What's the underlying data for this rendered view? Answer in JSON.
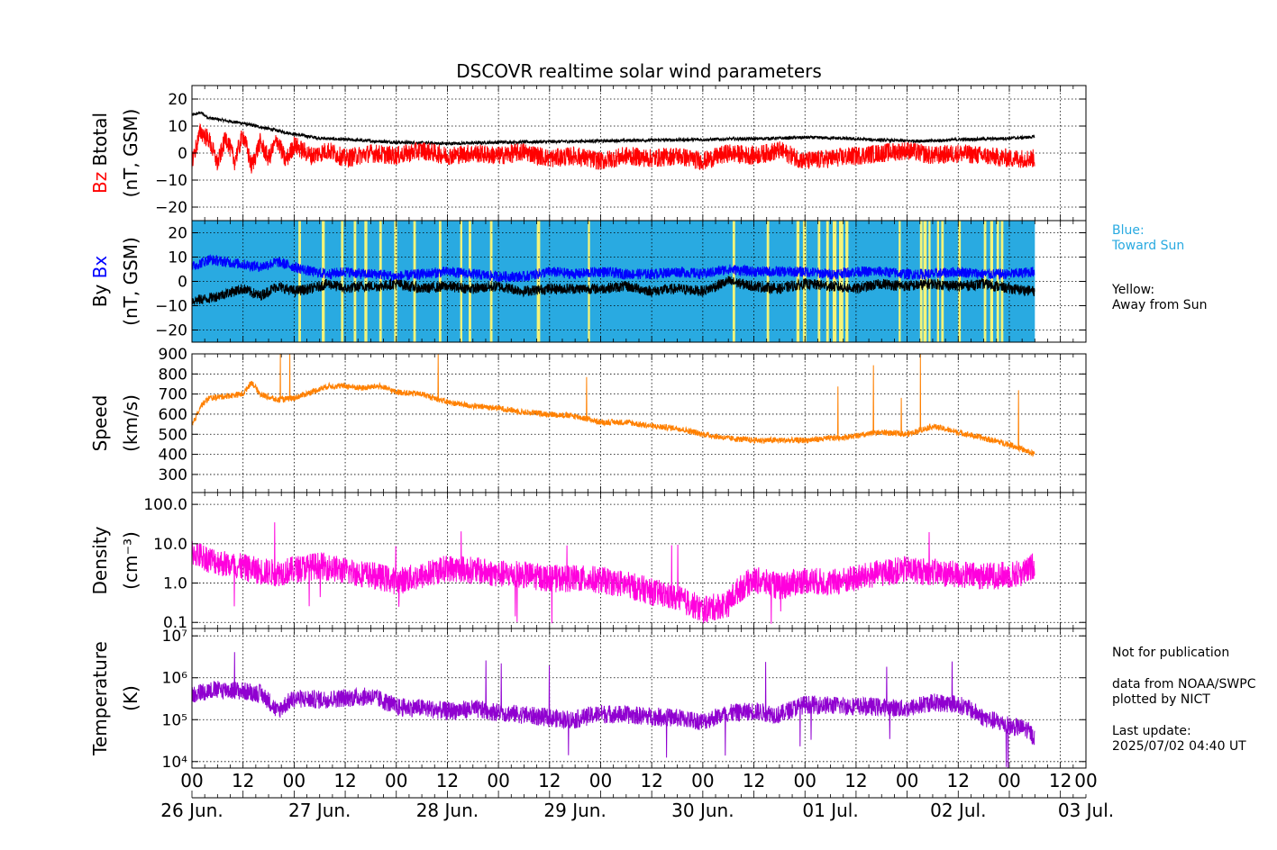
{
  "title": "DSCOVR realtime solar wind parameters",
  "colors": {
    "bz": "#ff0000",
    "btotal": "#000000",
    "bx": "#0000ff",
    "by": "#000000",
    "speed": "#ff8000",
    "density": "#ff00dd",
    "temperature": "#9000d0",
    "toward": "#29aae1",
    "away": "#f4f47a",
    "legend_blue_text": "#29aae1"
  },
  "chart_data": [
    {
      "type": "line",
      "panel": "magnetic-field-z",
      "ylabel_parts": [
        "Bz",
        "Btotal"
      ],
      "yunits": "(nT, GSM)",
      "ylim": [
        -25,
        25
      ],
      "yticks": [
        20,
        10,
        0,
        -10,
        -20
      ],
      "ytick_labels": [
        "20",
        "10",
        "0",
        "−10",
        "−20"
      ],
      "grid": true,
      "series": [
        {
          "name": "Btotal",
          "color": "#000000",
          "x": [
            0,
            2,
            4,
            8,
            12,
            18,
            24,
            30,
            36,
            42,
            48,
            60,
            72,
            84,
            96,
            108,
            120,
            126,
            132,
            138,
            144,
            150,
            156,
            162,
            168,
            174,
            180,
            186,
            192,
            198
          ],
          "values": [
            14,
            15,
            13,
            12,
            11,
            9,
            7,
            5.5,
            5,
            4.5,
            4,
            3.5,
            4,
            4.2,
            4.5,
            4.8,
            5,
            5.2,
            5.3,
            5.5,
            5.8,
            5.6,
            5.2,
            4.8,
            4.5,
            4.5,
            5,
            5.2,
            5.5,
            6
          ]
        },
        {
          "name": "Bz",
          "color": "#ff0000",
          "x": [
            0,
            2,
            4,
            6,
            8,
            10,
            12,
            14,
            16,
            18,
            20,
            22,
            24,
            28,
            32,
            36,
            42,
            48,
            54,
            60,
            66,
            72,
            78,
            84,
            90,
            96,
            102,
            108,
            114,
            120,
            126,
            132,
            138,
            144,
            150,
            156,
            162,
            168,
            174,
            180,
            186,
            192,
            198
          ],
          "values": [
            -3,
            8,
            5,
            -4,
            6,
            -3,
            7,
            -5,
            4,
            -2,
            5,
            -3,
            3,
            -1,
            1,
            -2,
            0,
            -1,
            1,
            -1,
            0,
            -1,
            0.5,
            -2,
            -1,
            -3,
            -1,
            -2,
            -1,
            -3,
            0,
            -1,
            1,
            -3,
            -2,
            -1,
            0,
            1,
            -1,
            0,
            -1,
            -2,
            -2
          ]
        }
      ]
    },
    {
      "type": "line",
      "panel": "magnetic-field-xy",
      "ylabel_parts": [
        "By",
        "Bx"
      ],
      "yunits": "(nT, GSM)",
      "ylim": [
        -25,
        25
      ],
      "yticks": [
        20,
        10,
        0,
        -10,
        -20
      ],
      "ytick_labels": [
        "20",
        "10",
        "0",
        "−10",
        "−20"
      ],
      "grid": true,
      "sector_until": 198,
      "away_intervals": [
        [
          25,
          25.6
        ],
        [
          30.5,
          31.2
        ],
        [
          35,
          35.6
        ],
        [
          38,
          38.6
        ],
        [
          40.5,
          41.2
        ],
        [
          44,
          44.6
        ],
        [
          47.5,
          48.2
        ],
        [
          52,
          52.6
        ],
        [
          58,
          58.6
        ],
        [
          63,
          63.5
        ],
        [
          65,
          65.6
        ],
        [
          70,
          70.6
        ],
        [
          81,
          81.8
        ],
        [
          93,
          93.5
        ],
        [
          127,
          127.6
        ],
        [
          135,
          135.6
        ],
        [
          142,
          142.7
        ],
        [
          143.5,
          144.3
        ],
        [
          147,
          147.6
        ],
        [
          149,
          149.6
        ],
        [
          150.5,
          151.4
        ],
        [
          152,
          153
        ],
        [
          153.5,
          154.2
        ],
        [
          166,
          166.5
        ],
        [
          171,
          171.6
        ],
        [
          171.8,
          172.6
        ],
        [
          173,
          173.5
        ],
        [
          175,
          175.5
        ],
        [
          176,
          176.6
        ],
        [
          180,
          180.6
        ],
        [
          186,
          186.6
        ],
        [
          187.5,
          188.2
        ],
        [
          189,
          189.6
        ],
        [
          190,
          190.6
        ]
      ],
      "series": [
        {
          "name": "Bx",
          "color": "#0000ff",
          "x": [
            0,
            4,
            8,
            12,
            16,
            20,
            24,
            28,
            32,
            36,
            40,
            44,
            48,
            54,
            60,
            66,
            72,
            78,
            84,
            90,
            96,
            102,
            108,
            114,
            120,
            126,
            132,
            138,
            144,
            150,
            156,
            162,
            168,
            174,
            180,
            186,
            192,
            198
          ],
          "values": [
            6,
            9,
            8,
            7,
            6,
            8,
            6,
            4,
            3,
            4,
            3,
            3,
            2,
            3,
            4,
            3,
            2,
            2,
            4,
            3,
            4,
            3,
            3,
            4,
            3,
            5,
            4,
            4,
            4,
            3,
            4,
            4,
            3,
            3,
            4,
            3,
            3,
            4
          ]
        },
        {
          "name": "By",
          "color": "#000000",
          "x": [
            0,
            4,
            8,
            12,
            16,
            20,
            24,
            28,
            32,
            36,
            40,
            44,
            48,
            54,
            60,
            66,
            72,
            78,
            84,
            90,
            96,
            102,
            108,
            114,
            120,
            126,
            132,
            138,
            144,
            150,
            156,
            162,
            168,
            174,
            180,
            186,
            192,
            198
          ],
          "values": [
            -8,
            -7,
            -5,
            -3,
            -6,
            -2,
            -4,
            -3,
            -1,
            -3,
            -2,
            -2,
            -1,
            -3,
            -2,
            -3,
            -2,
            -4,
            -3,
            -3,
            -3,
            -2,
            -4,
            -3,
            -4,
            0,
            -2,
            -3,
            -1,
            -2,
            -3,
            -1,
            -2,
            -1,
            -2,
            -1,
            -3,
            -4
          ]
        }
      ]
    },
    {
      "type": "line",
      "panel": "speed",
      "ylabel_parts": [
        "Speed"
      ],
      "yunits": "(km/s)",
      "ylim": [
        210,
        900
      ],
      "yticks": [
        900,
        800,
        700,
        600,
        500,
        400,
        300
      ],
      "ytick_labels": [
        "900",
        "800",
        "700",
        "600",
        "500",
        "400",
        "300"
      ],
      "grid": true,
      "series": [
        {
          "name": "Speed",
          "color": "#ff8000",
          "x": [
            0,
            2,
            4,
            8,
            12,
            14,
            16,
            20,
            24,
            28,
            32,
            36,
            40,
            44,
            48,
            54,
            60,
            66,
            72,
            78,
            84,
            90,
            96,
            102,
            108,
            114,
            120,
            126,
            132,
            136,
            138,
            144,
            150,
            156,
            162,
            168,
            174,
            180,
            186,
            192,
            198
          ],
          "values": [
            540,
            640,
            680,
            690,
            700,
            760,
            700,
            670,
            680,
            710,
            740,
            740,
            730,
            740,
            710,
            700,
            660,
            640,
            630,
            610,
            600,
            590,
            560,
            560,
            540,
            530,
            500,
            480,
            470,
            470,
            470,
            470,
            480,
            490,
            510,
            500,
            540,
            510,
            480,
            450,
            400
          ]
        }
      ]
    },
    {
      "type": "line",
      "panel": "density",
      "ylabel_parts": [
        "Density"
      ],
      "yunits": "(cm⁻³)",
      "yscale": "log",
      "ylim": [
        0.07,
        200
      ],
      "yticks": [
        100,
        10,
        1,
        0.1
      ],
      "ytick_labels": [
        "100.0",
        "10.0",
        "1.0",
        "0.1"
      ],
      "grid": true,
      "series": [
        {
          "name": "Density",
          "color": "#ff00dd",
          "x": [
            0,
            4,
            8,
            12,
            16,
            20,
            24,
            30,
            36,
            42,
            48,
            54,
            60,
            66,
            72,
            78,
            84,
            90,
            96,
            102,
            108,
            114,
            120,
            126,
            132,
            138,
            144,
            150,
            156,
            162,
            168,
            174,
            180,
            186,
            192,
            196,
            198
          ],
          "values": [
            6,
            4,
            3,
            2.5,
            2,
            1.8,
            2.2,
            2.8,
            2,
            1.6,
            1.1,
            1.5,
            2.4,
            2.1,
            1.7,
            1.6,
            1.3,
            1.3,
            1.2,
            0.9,
            0.6,
            0.4,
            0.2,
            0.3,
            1.2,
            0.8,
            1.2,
            1.0,
            1.3,
            1.8,
            2.2,
            1.9,
            1.6,
            1.5,
            1.6,
            1.9,
            3
          ]
        }
      ]
    },
    {
      "type": "line",
      "panel": "temperature",
      "ylabel_parts": [
        "Temperature"
      ],
      "yunits": "(K)",
      "yscale": "log",
      "ylim": [
        7000,
        15000000
      ],
      "yticks": [
        10000000,
        1000000,
        100000,
        10000
      ],
      "ytick_labels": [
        "10⁷",
        "10⁶",
        "10⁵",
        "10⁴"
      ],
      "grid": true,
      "series": [
        {
          "name": "Temperature",
          "color": "#9000d0",
          "x": [
            0,
            4,
            8,
            12,
            16,
            20,
            24,
            30,
            36,
            42,
            48,
            54,
            60,
            66,
            72,
            78,
            84,
            90,
            96,
            102,
            108,
            114,
            120,
            126,
            132,
            138,
            144,
            150,
            156,
            162,
            168,
            174,
            180,
            186,
            192,
            196,
            198
          ],
          "values": [
            400000,
            500000,
            520000,
            480000,
            420000,
            150000,
            320000,
            300000,
            330000,
            360000,
            200000,
            190000,
            160000,
            180000,
            150000,
            130000,
            110000,
            100000,
            140000,
            130000,
            120000,
            110000,
            90000,
            140000,
            160000,
            130000,
            230000,
            220000,
            210000,
            200000,
            180000,
            260000,
            230000,
            110000,
            70000,
            60000,
            35000
          ]
        }
      ]
    }
  ],
  "x_axis": {
    "range_hours": [
      0,
      210
    ],
    "tick_hours": [
      0,
      12,
      24,
      36,
      48,
      60,
      72,
      84,
      96,
      108,
      120,
      132,
      144,
      156,
      168,
      180,
      192,
      204
    ],
    "hour_labels": [
      "00",
      "12",
      "00",
      "12",
      "00",
      "12",
      "00",
      "12",
      "00",
      "12",
      "00",
      "12",
      "00",
      "12",
      "00",
      "12",
      "00",
      "12"
    ],
    "date_ticks": [
      0,
      24,
      48,
      72,
      96,
      120,
      144,
      168
    ],
    "date_labels": [
      "26 Jun.",
      "27 Jun.",
      "28 Jun.",
      "29 Jun.",
      "30 Jun.",
      "01 Jul.",
      "02 Jul.",
      "03 Jul."
    ]
  },
  "legend": {
    "blue_label": "Blue:",
    "blue_text": "Toward Sun",
    "yellow_label": "Yellow:",
    "yellow_text": "Away from Sun"
  },
  "notes": {
    "publication": "Not for publication",
    "source": "data from NOAA/SWPC",
    "plotted": "plotted by NICT",
    "update_label": "Last update:",
    "update_time": "2025/07/02 04:40 UT"
  }
}
